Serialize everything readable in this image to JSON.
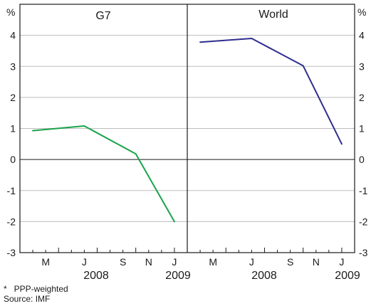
{
  "chart_data": {
    "type": "line",
    "title": "",
    "ylabel": "%",
    "ylim": [
      -3,
      5
    ],
    "yticks": [
      -3,
      -2,
      -1,
      0,
      1,
      2,
      3,
      4
    ],
    "grid": true,
    "x_tick_labels": [
      "M",
      "J",
      "S",
      "N",
      "J"
    ],
    "year_labels": [
      "2008",
      "2009"
    ],
    "x_tick_dates": [
      "2008-03",
      "2008-06",
      "2008-09",
      "2008-11",
      "2009-01"
    ],
    "panels": [
      {
        "title": "G7",
        "color": "#1aa34a",
        "series": [
          {
            "x": [
              "2008-02",
              "2008-06",
              "2008-10",
              "2009-01"
            ],
            "values": [
              0.93,
              1.08,
              0.18,
              -2.0
            ]
          }
        ]
      },
      {
        "title": "World",
        "color": "#2e2e8f",
        "series": [
          {
            "x": [
              "2008-02",
              "2008-06",
              "2008-10",
              "2009-01"
            ],
            "values": [
              3.78,
              3.9,
              3.02,
              0.5
            ]
          }
        ]
      }
    ]
  },
  "notes": {
    "footnote": "*   PPP-weighted",
    "source": "Source: IMF"
  }
}
